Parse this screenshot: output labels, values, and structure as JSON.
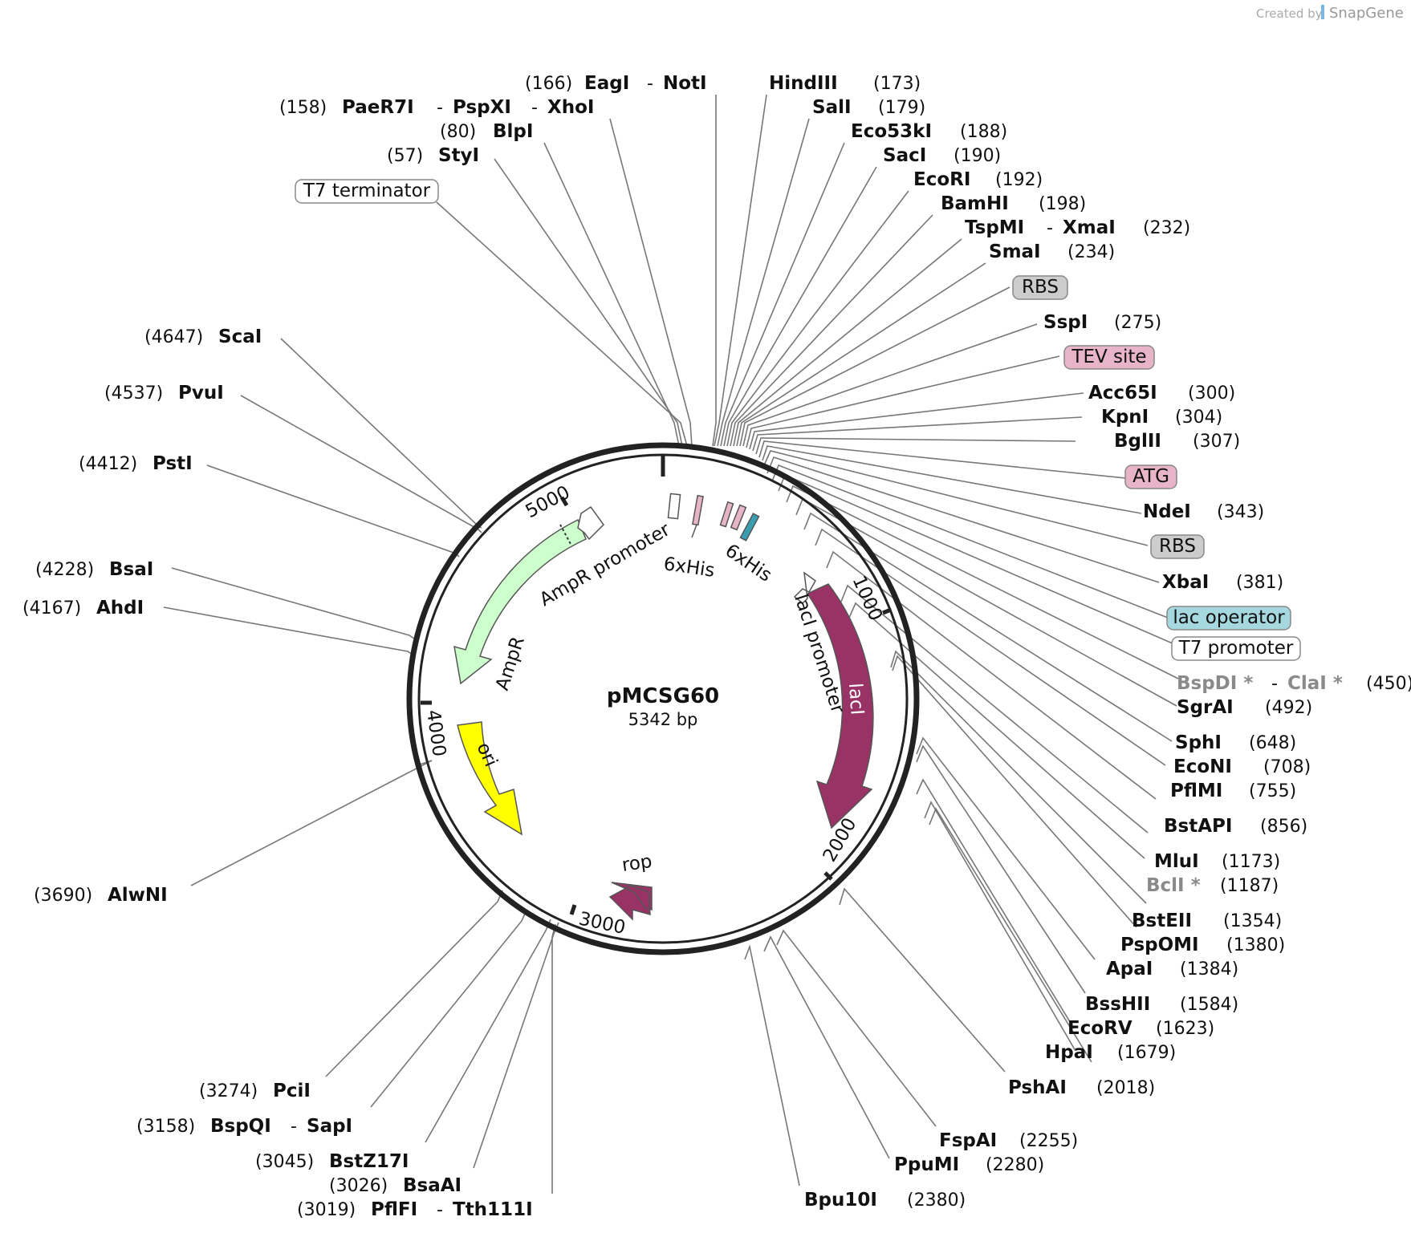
{
  "credit": {
    "prefix": "Created by",
    "brand": "SnapGene"
  },
  "plasmid": {
    "name": "pMCSG60",
    "length": "5342 bp"
  },
  "ticks": [
    "1000",
    "2000",
    "3000",
    "4000",
    "5000"
  ],
  "features": {
    "ampr_promoter": "AmpR promoter",
    "ampr": "AmpR",
    "ori": "ori",
    "rop": "rop",
    "laci": "lacI",
    "laci_promoter": "lacI promoter",
    "his1": "6xHis",
    "his2": "6xHis"
  },
  "boxed": {
    "t7term": "T7 terminator",
    "rbs1": "RBS",
    "tev": "TEV site",
    "atg": "ATG",
    "rbs2": "RBS",
    "lacop": "lac operator",
    "t7prom": "T7 promoter"
  },
  "colors": {
    "ampr": "#ccffcc",
    "ori": "#ffff00",
    "laci": "#993366",
    "rop": "#993366",
    "tev": "#e8b4c8",
    "atg": "#e8b4c8",
    "rbs": "#cccccc",
    "lacop": "#a6d8e0"
  },
  "sites": {
    "eag": {
      "pos": "(166)",
      "n1": "EagI",
      "sep": "-",
      "n2": "NotI"
    },
    "paer": {
      "pos": "(158)",
      "n1": "PaeR7I",
      "sep": "-",
      "n2": "PspXI",
      "sep2": "-",
      "n3": "XhoI"
    },
    "blp": {
      "pos": "(80)",
      "n1": "BlpI"
    },
    "sty": {
      "pos": "(57)",
      "n1": "StyI"
    },
    "hind": {
      "n1": "HindIII",
      "pos": "(173)"
    },
    "sal": {
      "n1": "SalI",
      "pos": "(179)"
    },
    "eco53": {
      "n1": "Eco53kI",
      "pos": "(188)"
    },
    "sac": {
      "n1": "SacI",
      "pos": "(190)"
    },
    "ecori": {
      "n1": "EcoRI",
      "pos": "(192)"
    },
    "bam": {
      "n1": "BamHI",
      "pos": "(198)"
    },
    "tspmi": {
      "n1": "TspMI",
      "sep": "-",
      "n2": "XmaI",
      "pos": "(232)"
    },
    "sma": {
      "n1": "SmaI",
      "pos": "(234)"
    },
    "ssp": {
      "n1": "SspI",
      "pos": "(275)"
    },
    "acc": {
      "n1": "Acc65I",
      "pos": "(300)"
    },
    "kpn": {
      "n1": "KpnI",
      "pos": "(304)"
    },
    "bgl": {
      "n1": "BglII",
      "pos": "(307)"
    },
    "nde": {
      "n1": "NdeI",
      "pos": "(343)"
    },
    "xba": {
      "n1": "XbaI",
      "pos": "(381)"
    },
    "bspdi": {
      "n1": "BspDI *",
      "sep": "-",
      "n2": "ClaI *",
      "pos": "(450)"
    },
    "sgr": {
      "n1": "SgrAI",
      "pos": "(492)"
    },
    "sph": {
      "n1": "SphI",
      "pos": "(648)"
    },
    "econi": {
      "n1": "EcoNI",
      "pos": "(708)"
    },
    "pflmi": {
      "n1": "PflMI",
      "pos": "(755)"
    },
    "bstapi": {
      "n1": "BstAPI",
      "pos": "(856)"
    },
    "mlu": {
      "n1": "MluI",
      "pos": "(1173)"
    },
    "bcl": {
      "n1": "BclI *",
      "pos": "(1187)"
    },
    "bsteii": {
      "n1": "BstEII",
      "pos": "(1354)"
    },
    "pspomi": {
      "n1": "PspOMI",
      "pos": "(1380)"
    },
    "apa": {
      "n1": "ApaI",
      "pos": "(1384)"
    },
    "bsshii": {
      "n1": "BssHII",
      "pos": "(1584)"
    },
    "ecorv": {
      "n1": "EcoRV",
      "pos": "(1623)"
    },
    "hpa": {
      "n1": "HpaI",
      "pos": "(1679)"
    },
    "psha": {
      "n1": "PshAI",
      "pos": "(2018)"
    },
    "fspa": {
      "n1": "FspAI",
      "pos": "(2255)"
    },
    "ppumi": {
      "n1": "PpuMI",
      "pos": "(2280)"
    },
    "bpu10": {
      "n1": "Bpu10I",
      "pos": "(2380)"
    },
    "pci": {
      "pos": "(3274)",
      "n1": "PciI"
    },
    "bspqi": {
      "pos": "(3158)",
      "n1": "BspQI",
      "sep": "-",
      "n2": "SapI"
    },
    "bstz": {
      "pos": "(3045)",
      "n1": "BstZ17I"
    },
    "bsaai": {
      "pos": "(3026)",
      "n1": "BsaAI"
    },
    "pflfi": {
      "pos": "(3019)",
      "n1": "PflFI",
      "sep": "-",
      "n2": "Tth111I"
    },
    "alwni": {
      "pos": "(3690)",
      "n1": "AlwNI"
    },
    "ahdi": {
      "pos": "(4167)",
      "n1": "AhdI"
    },
    "bsai": {
      "pos": "(4228)",
      "n1": "BsaI"
    },
    "psti": {
      "pos": "(4412)",
      "n1": "PstI"
    },
    "pvui": {
      "pos": "(4537)",
      "n1": "PvuI"
    },
    "scai": {
      "pos": "(4647)",
      "n1": "ScaI"
    }
  }
}
